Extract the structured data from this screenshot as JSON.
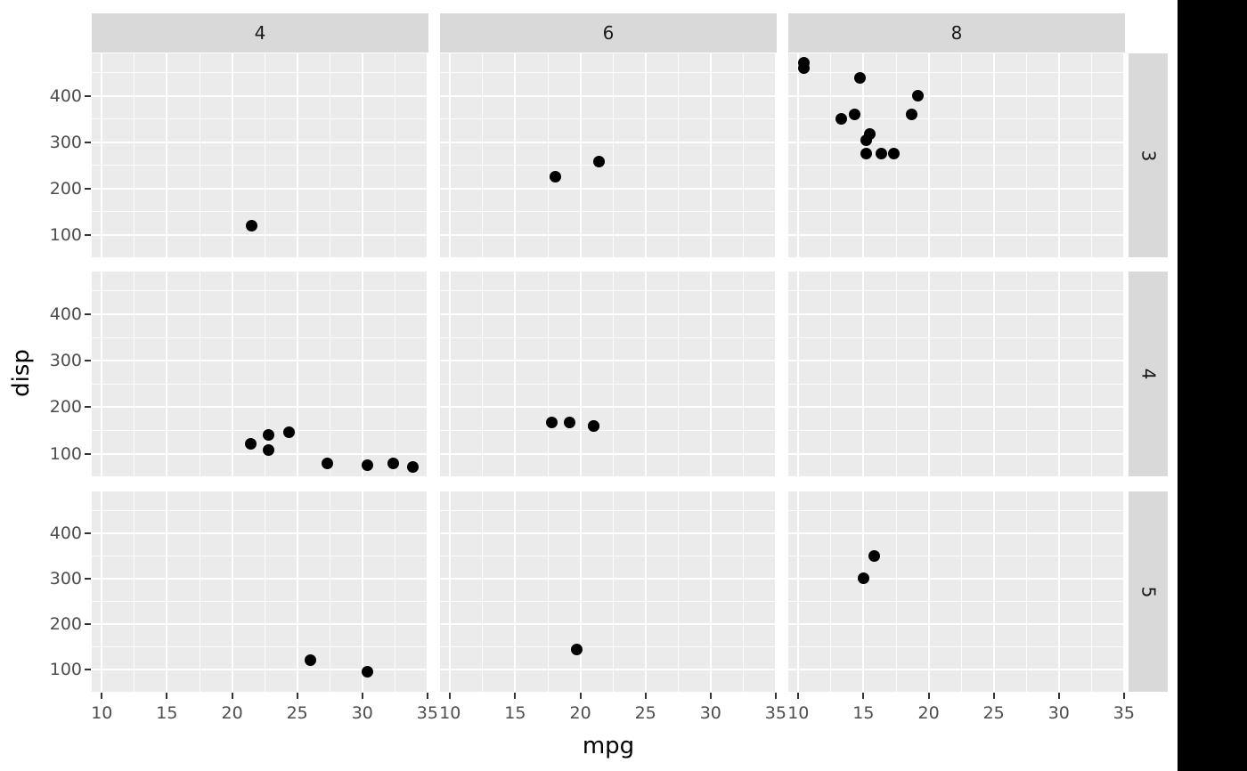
{
  "chart_data": {
    "type": "scatter",
    "title": "",
    "xlabel": "mpg",
    "ylabel": "disp",
    "facet": {
      "col_labels": [
        "4",
        "6",
        "8"
      ],
      "row_labels": [
        "3",
        "4",
        "5"
      ]
    },
    "x_ticks": [
      10,
      15,
      20,
      25,
      30,
      35
    ],
    "y_ticks": [
      100,
      200,
      300,
      400
    ],
    "x_minor": [
      12.5,
      17.5,
      22.5,
      27.5,
      32.5
    ],
    "y_minor": [
      150,
      250,
      350,
      450
    ],
    "xlim": [
      9.225,
      35.075
    ],
    "ylim": [
      51.05,
      492.05
    ],
    "grid": true,
    "legend": "none",
    "panels": [
      {
        "col": "4",
        "row": "3",
        "points": [
          [
            21.5,
            120.1
          ]
        ]
      },
      {
        "col": "6",
        "row": "3",
        "points": [
          [
            21.4,
            258.0
          ],
          [
            18.1,
            225.0
          ]
        ]
      },
      {
        "col": "8",
        "row": "3",
        "points": [
          [
            18.7,
            360.0
          ],
          [
            14.3,
            360.0
          ],
          [
            16.4,
            275.8
          ],
          [
            17.3,
            275.8
          ],
          [
            15.2,
            275.8
          ],
          [
            10.4,
            472.0
          ],
          [
            10.4,
            460.0
          ],
          [
            14.7,
            440.0
          ],
          [
            15.5,
            318.0
          ],
          [
            15.2,
            304.0
          ],
          [
            13.3,
            350.0
          ],
          [
            19.2,
            400.0
          ]
        ]
      },
      {
        "col": "4",
        "row": "4",
        "points": [
          [
            22.8,
            108.0
          ],
          [
            24.4,
            146.7
          ],
          [
            22.8,
            140.8
          ],
          [
            32.4,
            78.7
          ],
          [
            30.4,
            75.7
          ],
          [
            33.9,
            71.1
          ],
          [
            27.3,
            79.0
          ],
          [
            21.4,
            121.0
          ]
        ]
      },
      {
        "col": "6",
        "row": "4",
        "points": [
          [
            21.0,
            160.0
          ],
          [
            21.0,
            160.0
          ],
          [
            19.2,
            167.6
          ],
          [
            17.8,
            167.6
          ]
        ]
      },
      {
        "col": "8",
        "row": "4",
        "points": []
      },
      {
        "col": "4",
        "row": "5",
        "points": [
          [
            26.0,
            120.3
          ],
          [
            30.4,
            95.1
          ]
        ]
      },
      {
        "col": "6",
        "row": "5",
        "points": [
          [
            19.7,
            145.0
          ]
        ]
      },
      {
        "col": "8",
        "row": "5",
        "points": [
          [
            15.8,
            351.0
          ],
          [
            15.0,
            301.0
          ]
        ]
      }
    ],
    "colors": {
      "background": "#FFFFFF",
      "panel_bg": "#EBEBEB",
      "grid_major": "#FFFFFF",
      "grid_minor": "#FFFFFF",
      "strip_bg": "#D9D9D9",
      "strip_text": "#1A1A1A",
      "axis_text": "#4D4D4D",
      "axis_title": "#000000",
      "tick_mark": "#333333",
      "point": "#000000",
      "right_band": "#000000"
    }
  }
}
